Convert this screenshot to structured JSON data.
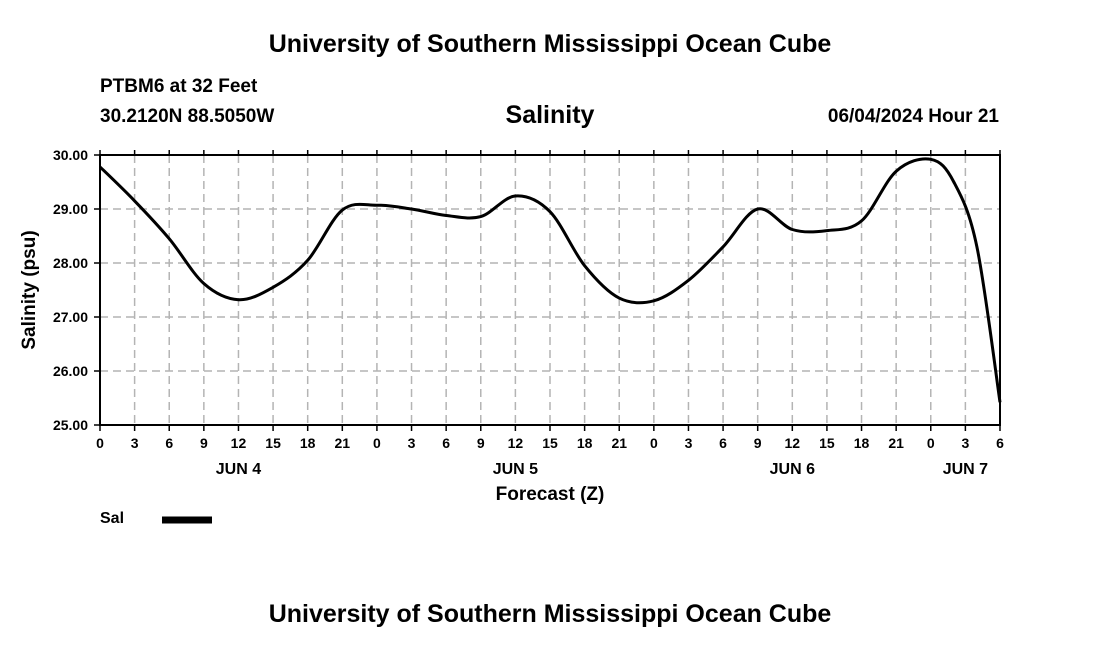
{
  "header": {
    "title": "University of Southern Mississippi Ocean Cube",
    "station": "PTBM6 at 32 Feet",
    "coords": "30.2120N  88.5050W",
    "variable": "Salinity",
    "datetime": "06/04/2024 Hour 21"
  },
  "footer": {
    "title": "University of Southern Mississippi Ocean Cube"
  },
  "legend": {
    "label": "Sal"
  },
  "colors": {
    "line": "#000000",
    "grid": "#b4b4b4",
    "background": "#ffffff"
  },
  "chart_data": {
    "type": "line",
    "title": "Salinity",
    "xlabel": "Forecast (Z)",
    "ylabel": "Salinity (psu)",
    "xlim": [
      0,
      78
    ],
    "ylim": [
      25.0,
      30.0
    ],
    "x_tick_labels": [
      "0",
      "3",
      "6",
      "9",
      "12",
      "15",
      "18",
      "21",
      "0",
      "3",
      "6",
      "9",
      "12",
      "15",
      "18",
      "21",
      "0",
      "3",
      "6",
      "9",
      "12",
      "15",
      "18",
      "21",
      "0",
      "3",
      "6"
    ],
    "y_tick_labels": [
      "25.00",
      "26.00",
      "27.00",
      "28.00",
      "29.00",
      "30.00"
    ],
    "y_ticks": [
      25,
      26,
      27,
      28,
      29,
      30
    ],
    "date_labels": [
      {
        "label": "JUN 4",
        "x": 12
      },
      {
        "label": "JUN 5",
        "x": 36
      },
      {
        "label": "JUN 6",
        "x": 60
      },
      {
        "label": "JUN 7",
        "x": 75
      }
    ],
    "grid": true,
    "series": [
      {
        "name": "Sal",
        "x": [
          0,
          3,
          6,
          9,
          12,
          15,
          18,
          21,
          24,
          27,
          30,
          33,
          36,
          39,
          42,
          45,
          48,
          51,
          54,
          57,
          60,
          63,
          66,
          69,
          72,
          74,
          76,
          78
        ],
        "values": [
          29.78,
          29.15,
          28.45,
          27.62,
          27.32,
          27.55,
          28.05,
          28.98,
          29.07,
          29.0,
          28.88,
          28.86,
          29.24,
          28.95,
          27.95,
          27.35,
          27.3,
          27.68,
          28.3,
          29.0,
          28.62,
          28.6,
          28.78,
          29.7,
          29.92,
          29.5,
          28.3,
          25.42
        ]
      }
    ]
  }
}
